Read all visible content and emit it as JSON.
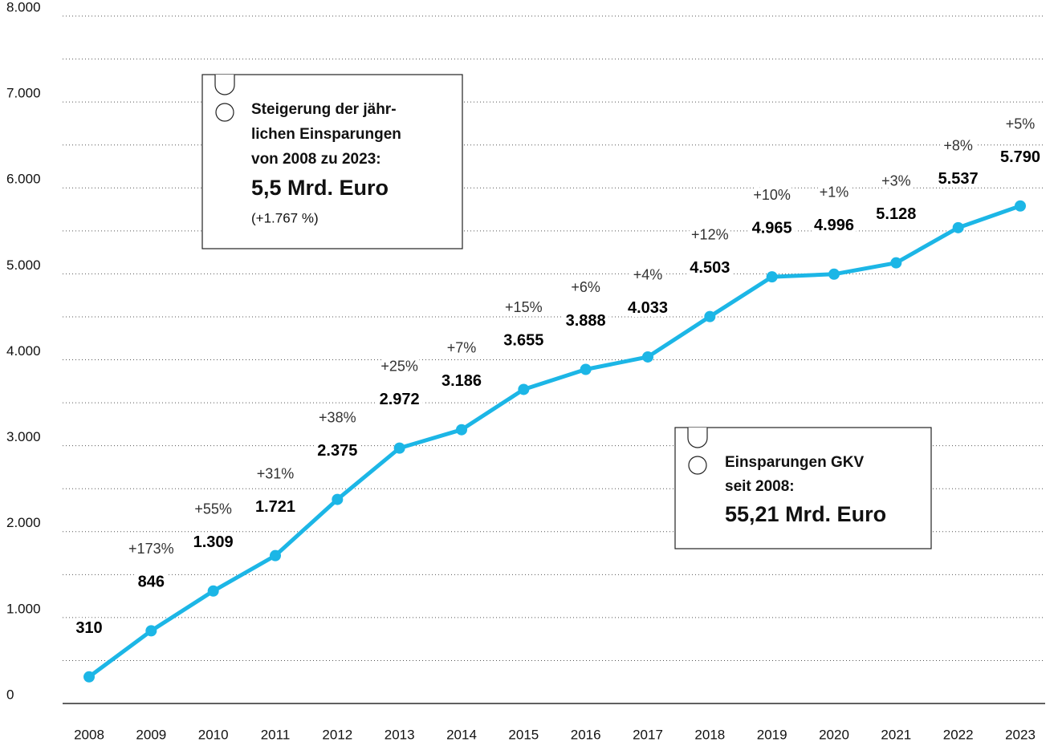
{
  "chart_data": {
    "type": "line",
    "categories": [
      "2008",
      "2009",
      "2010",
      "2011",
      "2012",
      "2013",
      "2014",
      "2015",
      "2016",
      "2017",
      "2018",
      "2019",
      "2020",
      "2021",
      "2022",
      "2023"
    ],
    "series": [
      {
        "name": null,
        "color": "#1cb6e6",
        "values": [
          310,
          846,
          1309,
          1721,
          2375,
          2972,
          3186,
          3655,
          3888,
          4033,
          4503,
          4965,
          4996,
          5128,
          5537,
          5790
        ],
        "value_labels": [
          "310",
          "846",
          "1.309",
          "1.721",
          "2.375",
          "2.972",
          "3.186",
          "3.655",
          "3.888",
          "4.033",
          "4.503",
          "4.965",
          "4.996",
          "5.128",
          "5.537",
          "5.790"
        ]
      }
    ],
    "change_labels": [
      null,
      "+173%",
      "+55%",
      "+31%",
      "+38%",
      "+25%",
      "+7%",
      "+15%",
      "+6%",
      "+4%",
      "+12%",
      "+10%",
      "+1%",
      "+3%",
      "+8%",
      "+5%"
    ],
    "ylim": [
      0,
      8000
    ],
    "yticks": [
      0,
      {
        "value": 1000,
        "label": "1.000"
      },
      {
        "value": 2000,
        "label": "2.000"
      },
      {
        "value": 3000,
        "label": "3.000"
      },
      {
        "value": 4000,
        "label": "4.000"
      },
      {
        "value": 5000,
        "label": "5.000"
      },
      {
        "value": 6000,
        "label": "6.000"
      },
      {
        "value": 7000,
        "label": "7.000"
      },
      {
        "value": 8000,
        "label": "8.000"
      }
    ],
    "minor_yticks": [
      500,
      1500,
      2500,
      3500,
      4500,
      5500,
      6500,
      7500
    ],
    "grid": true,
    "annotations": [
      {
        "lines": [
          "Steigerung der jähr-",
          "lichen Einsparungen",
          "von 2008 zu 2023:"
        ],
        "highlight": "5,5 Mrd. Euro",
        "note": "(+1.767 %)"
      },
      {
        "lines": [
          "Einsparungen GKV",
          "seit 2008:"
        ],
        "highlight": "55,21 Mrd. Euro"
      }
    ]
  }
}
